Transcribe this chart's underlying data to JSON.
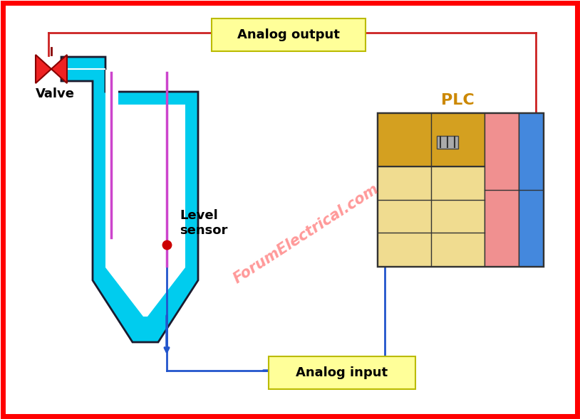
{
  "fig_width": 8.14,
  "fig_height": 5.89,
  "bg_color": "#ffffff",
  "border_color": "#ff0000",
  "border_lw": 5,
  "tank_fill_color": "#00ccee",
  "tank_outline_color": "#1a1a2e",
  "pipe_probe_color": "#cc44cc",
  "valve_color": "#ee2222",
  "valve_label": "Valve",
  "valve_label_color": "#000000",
  "level_sensor_label": "Level\nsensor",
  "level_sensor_color": "#000000",
  "level_dot_color": "#cc0000",
  "analog_output_label": "Analog output",
  "analog_input_label": "Analog input",
  "label_box_color": "#ffff99",
  "label_box_edge": "#bbbb00",
  "label_text_color": "#000000",
  "arrow_red_color": "#cc2222",
  "arrow_blue_color": "#2255cc",
  "plc_label": "PLC",
  "plc_label_color": "#cc8800",
  "plc_yellow_dark": "#d4a020",
  "plc_yellow_light": "#f0dc90",
  "plc_red": "#f09090",
  "plc_blue": "#4488dd",
  "plc_outline": "#333333",
  "watermark_text": "ForumElectrical.com",
  "watermark_color": "#ff3333",
  "watermark_alpha": 0.5
}
